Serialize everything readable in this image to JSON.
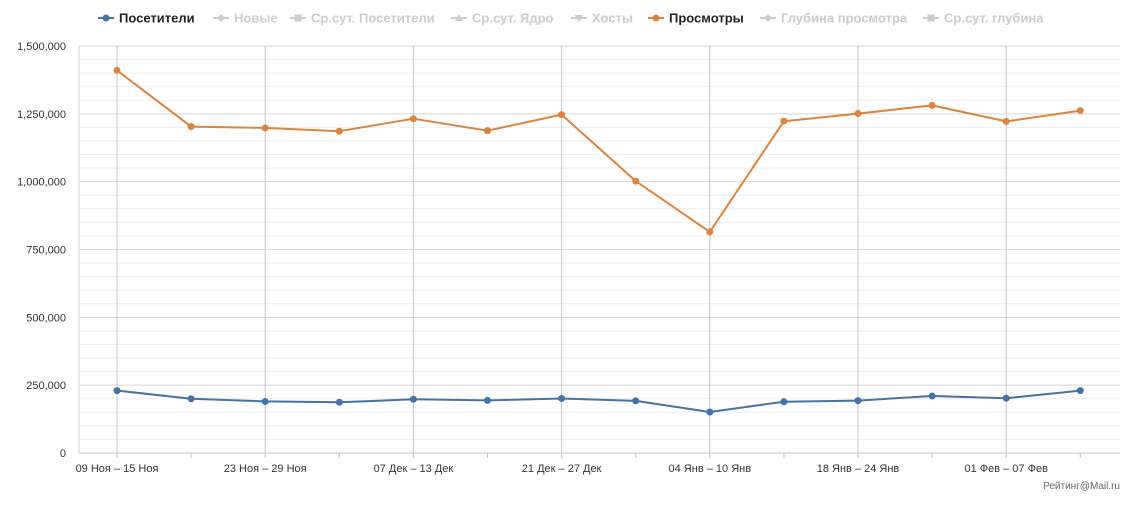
{
  "legend": [
    {
      "label": "Посетители",
      "active": true,
      "color": "#4572A7",
      "marker": "circle"
    },
    {
      "label": "Новые",
      "active": false,
      "color": "#cccccc",
      "marker": "diamond"
    },
    {
      "label": "Ср.сут. Посетители",
      "active": false,
      "color": "#cccccc",
      "marker": "square"
    },
    {
      "label": "Ср.сут. Ядро",
      "active": false,
      "color": "#cccccc",
      "marker": "triangle"
    },
    {
      "label": "Хосты",
      "active": false,
      "color": "#cccccc",
      "marker": "triangle-down"
    },
    {
      "label": "Просмотры",
      "active": true,
      "color": "#DB843D",
      "marker": "circle"
    },
    {
      "label": "Глубина просмотра",
      "active": false,
      "color": "#cccccc",
      "marker": "diamond"
    },
    {
      "label": "Ср.сут. глубина",
      "active": false,
      "color": "#cccccc",
      "marker": "square"
    }
  ],
  "credit": "Рейтинг@Mail.ru",
  "chart_data": {
    "type": "line",
    "x_tick_labels": [
      "09 Ноя – 15 Ноя",
      "23 Ноя – 29 Ноя",
      "07 Дек – 13 Дек",
      "21 Дек – 27 Дек",
      "04 Янв – 10 Янв",
      "18 Янв – 24 Янв",
      "01 Фев – 07 Фев"
    ],
    "x_tick_every": 2,
    "y_ticks": [
      0,
      250000,
      500000,
      750000,
      1000000,
      1250000,
      1500000
    ],
    "y_tick_labels": [
      "0",
      "250,000",
      "500,000",
      "750,000",
      "1,000,000",
      "1,250,000",
      "1,500,000"
    ],
    "ylim": [
      0,
      1500000
    ],
    "grid": true,
    "legend_position": "top",
    "series": [
      {
        "name": "Посетители",
        "color": "#4572A7",
        "values": [
          230000,
          200000,
          190000,
          187000,
          198000,
          194000,
          201000,
          192000,
          151000,
          189000,
          193000,
          210000,
          202000,
          230000
        ]
      },
      {
        "name": "Просмотры",
        "color": "#DB843D",
        "values": [
          1410000,
          1203000,
          1198000,
          1186000,
          1232000,
          1188000,
          1247000,
          1002000,
          815000,
          1223000,
          1251000,
          1281000,
          1222000,
          1262000
        ]
      }
    ]
  }
}
